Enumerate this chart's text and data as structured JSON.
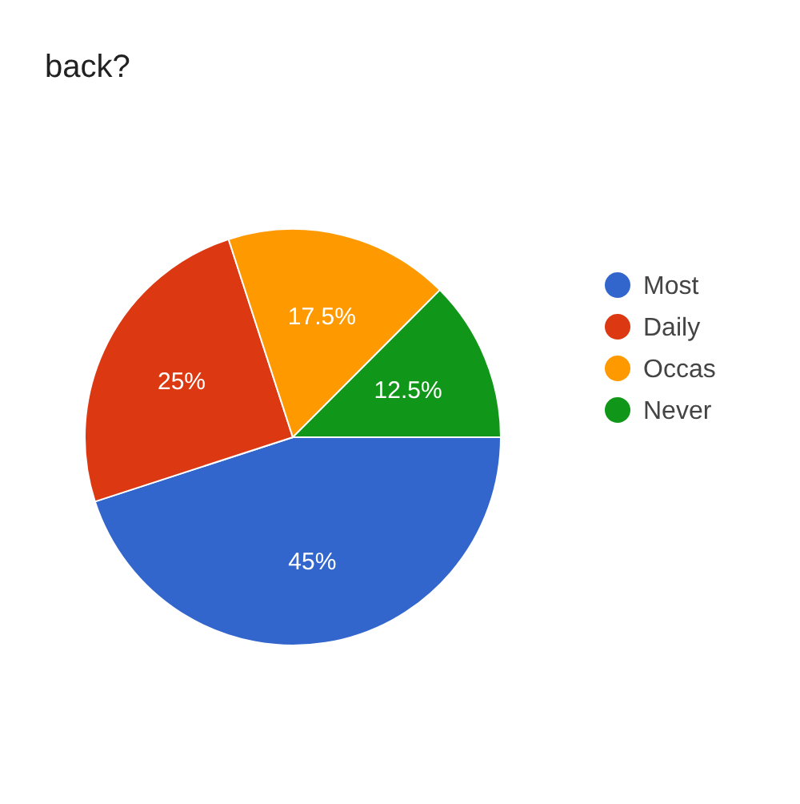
{
  "chart_data": {
    "type": "pie",
    "title": "back?",
    "categories": [
      "Most",
      "Daily",
      "Occas",
      "Never"
    ],
    "values": [
      45,
      25,
      17.5,
      12.5
    ],
    "colors": [
      "#3366cc",
      "#dc3912",
      "#ff9900",
      "#109618"
    ],
    "value_labels": [
      "45%",
      "25%",
      "17.5%",
      "12.5%"
    ],
    "legend": "right"
  }
}
